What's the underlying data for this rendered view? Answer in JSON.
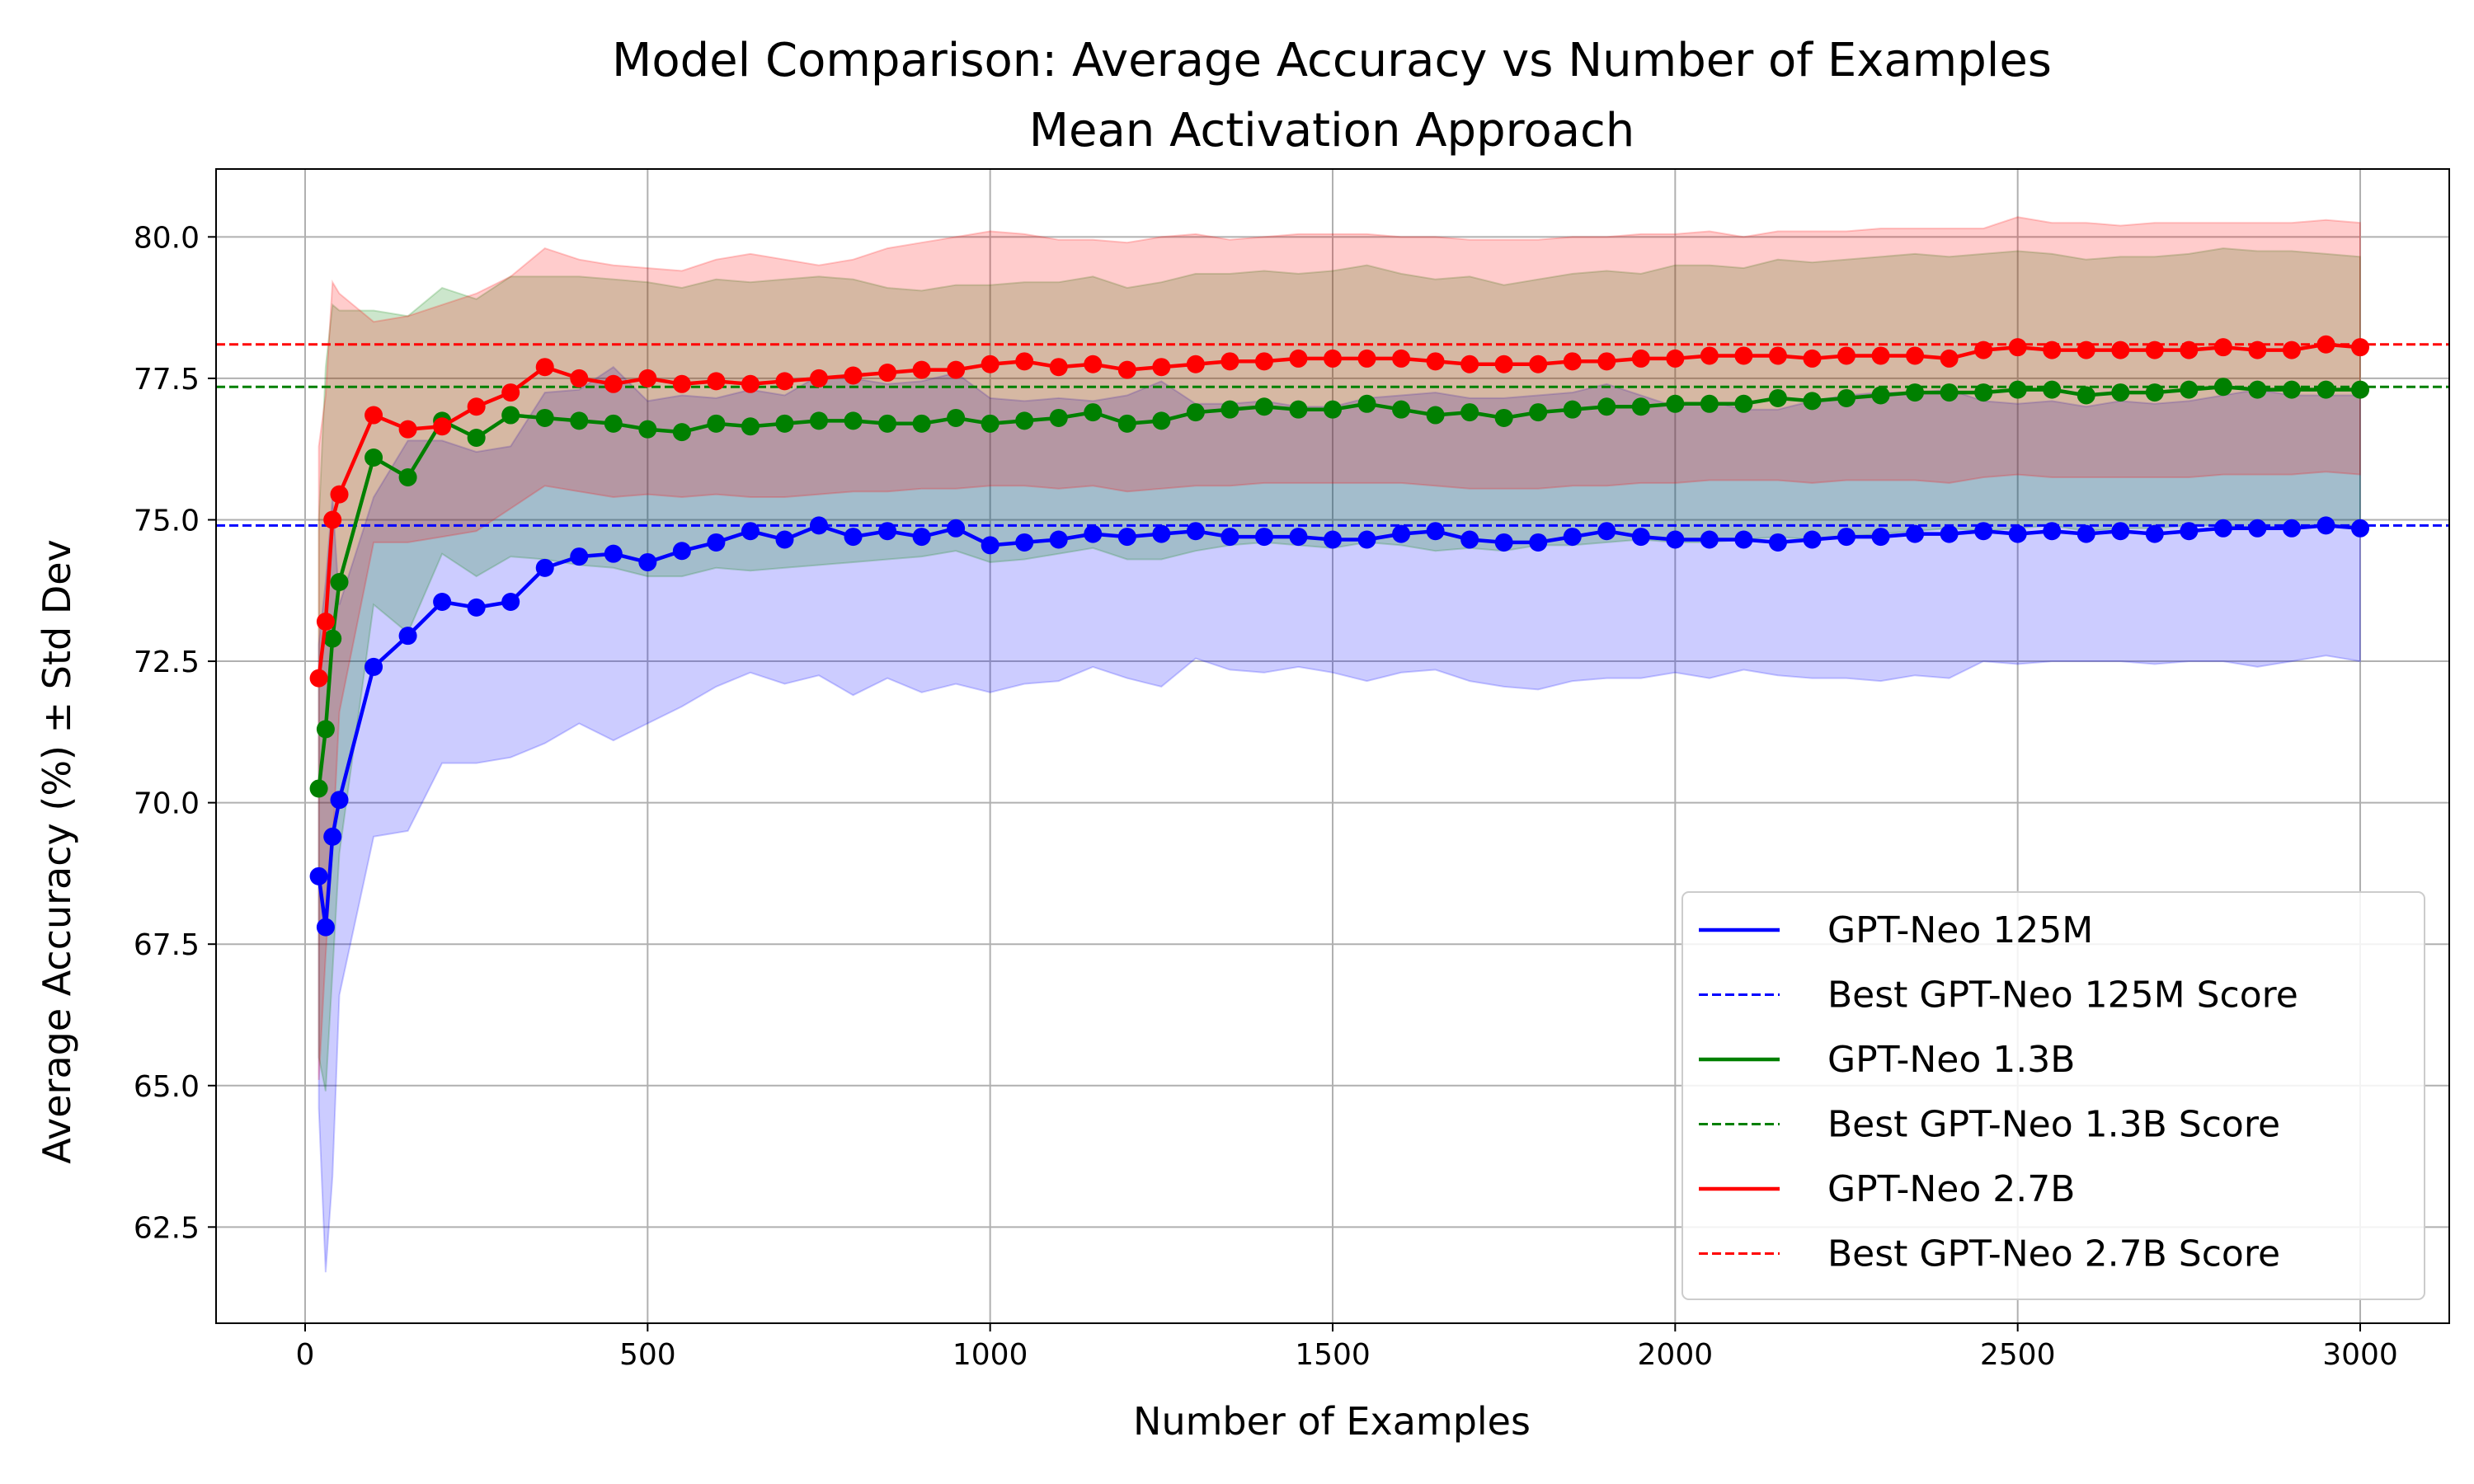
{
  "chart_data": {
    "type": "line",
    "title": "Model Comparison: Average Accuracy vs Number of Examples",
    "subtitle": "Mean Activation Approach",
    "xlabel": "Number of Examples",
    "ylabel": "Average Accuracy (%) ± Std Dev",
    "xlim": [
      -130,
      3130
    ],
    "ylim": [
      60.8,
      81.2
    ],
    "xticks": [
      0,
      500,
      1000,
      1500,
      2000,
      2500,
      3000
    ],
    "xtick_labels": [
      "0",
      "500",
      "1000",
      "1500",
      "2000",
      "2500",
      "3000"
    ],
    "yticks": [
      62.5,
      65.0,
      67.5,
      70.0,
      72.5,
      75.0,
      77.5,
      80.0
    ],
    "ytick_labels": [
      "62.5",
      "65.0",
      "67.5",
      "70.0",
      "72.5",
      "75.0",
      "77.5",
      "80.0"
    ],
    "grid": true,
    "legend_position": "bottom-right",
    "x": [
      20,
      30,
      40,
      50,
      100,
      150,
      200,
      250,
      300,
      350,
      400,
      450,
      500,
      550,
      600,
      650,
      700,
      750,
      800,
      850,
      900,
      950,
      1000,
      1050,
      1100,
      1150,
      1200,
      1250,
      1300,
      1350,
      1400,
      1450,
      1500,
      1550,
      1600,
      1650,
      1700,
      1750,
      1800,
      1850,
      1900,
      1950,
      2000,
      2050,
      2100,
      2150,
      2200,
      2250,
      2300,
      2350,
      2400,
      2450,
      2500,
      2550,
      2600,
      2650,
      2700,
      2750,
      2800,
      2850,
      2900,
      2950,
      3000
    ],
    "series": [
      {
        "name": "GPT-Neo 125M",
        "color": "#0000ff",
        "band_color": "#0000ff",
        "mean": [
          68.7,
          67.8,
          69.4,
          70.05,
          72.4,
          72.95,
          73.55,
          73.45,
          73.55,
          74.15,
          74.35,
          74.4,
          74.25,
          74.45,
          74.6,
          74.8,
          74.65,
          74.9,
          74.7,
          74.8,
          74.7,
          74.85,
          74.55,
          74.6,
          74.65,
          74.75,
          74.7,
          74.75,
          74.8,
          74.7,
          74.7,
          74.7,
          74.65,
          74.65,
          74.75,
          74.8,
          74.65,
          74.6,
          74.6,
          74.7,
          74.8,
          74.7,
          74.65,
          74.65,
          74.65,
          74.6,
          74.65,
          74.7,
          74.7,
          74.75,
          74.75,
          74.8,
          74.75,
          74.8,
          74.75,
          74.8,
          74.75,
          74.8,
          74.85,
          74.85,
          74.85,
          74.9,
          74.85
        ],
        "lower": [
          64.6,
          61.7,
          63.4,
          66.6,
          69.4,
          69.5,
          70.7,
          70.7,
          70.8,
          71.05,
          71.4,
          71.1,
          71.4,
          71.7,
          72.05,
          72.3,
          72.1,
          72.25,
          71.9,
          72.2,
          71.95,
          72.1,
          71.95,
          72.1,
          72.15,
          72.4,
          72.2,
          72.05,
          72.55,
          72.35,
          72.3,
          72.4,
          72.3,
          72.15,
          72.3,
          72.35,
          72.15,
          72.05,
          72.0,
          72.15,
          72.2,
          72.2,
          72.3,
          72.2,
          72.35,
          72.25,
          72.2,
          72.2,
          72.15,
          72.25,
          72.2,
          72.5,
          72.45,
          72.5,
          72.5,
          72.5,
          72.45,
          72.5,
          72.5,
          72.4,
          72.5,
          72.6,
          72.5
        ],
        "upper": [
          72.8,
          73.9,
          75.4,
          73.5,
          75.4,
          76.4,
          76.4,
          76.2,
          76.3,
          77.25,
          77.3,
          77.7,
          77.1,
          77.2,
          77.15,
          77.3,
          77.2,
          77.55,
          77.5,
          77.4,
          77.45,
          77.6,
          77.15,
          77.1,
          77.15,
          77.1,
          77.2,
          77.45,
          77.05,
          77.05,
          77.1,
          77.0,
          77.0,
          77.15,
          77.2,
          77.25,
          77.15,
          77.15,
          77.2,
          77.25,
          77.4,
          77.2,
          77.0,
          77.1,
          76.95,
          76.95,
          77.1,
          77.2,
          77.25,
          77.25,
          77.3,
          77.1,
          77.05,
          77.1,
          77.0,
          77.1,
          77.05,
          77.1,
          77.2,
          77.3,
          77.2,
          77.2,
          77.2
        ],
        "best": 74.9,
        "best_label": "Best GPT-Neo 125M Score"
      },
      {
        "name": "GPT-Neo 1.3B",
        "color": "#008000",
        "band_color": "#008000",
        "mean": [
          70.25,
          71.3,
          72.9,
          73.9,
          76.1,
          75.75,
          76.75,
          76.45,
          76.85,
          76.8,
          76.75,
          76.7,
          76.6,
          76.55,
          76.7,
          76.65,
          76.7,
          76.75,
          76.75,
          76.7,
          76.7,
          76.8,
          76.7,
          76.75,
          76.8,
          76.9,
          76.7,
          76.75,
          76.9,
          76.95,
          77.0,
          76.95,
          76.95,
          77.05,
          76.95,
          76.85,
          76.9,
          76.8,
          76.9,
          76.95,
          77.0,
          77.0,
          77.05,
          77.05,
          77.05,
          77.15,
          77.1,
          77.15,
          77.2,
          77.25,
          77.25,
          77.25,
          77.3,
          77.3,
          77.2,
          77.25,
          77.25,
          77.3,
          77.35,
          77.3,
          77.3,
          77.3,
          77.3
        ],
        "lower": [
          65.5,
          64.9,
          67.0,
          69.1,
          73.5,
          73.0,
          74.4,
          74.0,
          74.35,
          74.3,
          74.2,
          74.15,
          74.0,
          74.0,
          74.15,
          74.1,
          74.15,
          74.2,
          74.25,
          74.3,
          74.35,
          74.45,
          74.25,
          74.3,
          74.4,
          74.5,
          74.3,
          74.3,
          74.45,
          74.55,
          74.6,
          74.55,
          74.5,
          74.6,
          74.55,
          74.45,
          74.5,
          74.45,
          74.55,
          74.55,
          74.6,
          74.65,
          74.6,
          74.6,
          74.65,
          74.7,
          74.65,
          74.7,
          74.75,
          74.8,
          74.85,
          74.8,
          74.85,
          74.9,
          74.8,
          74.85,
          74.85,
          74.9,
          74.9,
          74.85,
          74.85,
          74.9,
          74.9
        ],
        "upper": [
          75.0,
          77.7,
          78.8,
          78.7,
          78.7,
          78.6,
          79.1,
          78.9,
          79.3,
          79.3,
          79.3,
          79.25,
          79.2,
          79.1,
          79.25,
          79.2,
          79.25,
          79.3,
          79.25,
          79.1,
          79.05,
          79.15,
          79.15,
          79.2,
          79.2,
          79.3,
          79.1,
          79.2,
          79.35,
          79.35,
          79.4,
          79.35,
          79.4,
          79.5,
          79.35,
          79.25,
          79.3,
          79.15,
          79.25,
          79.35,
          79.4,
          79.35,
          79.5,
          79.5,
          79.45,
          79.6,
          79.55,
          79.6,
          79.65,
          79.7,
          79.65,
          79.7,
          79.75,
          79.7,
          79.6,
          79.65,
          79.65,
          79.7,
          79.8,
          79.75,
          79.75,
          79.7,
          79.65
        ],
        "best": 77.35,
        "best_label": "Best GPT-Neo 1.3B Score"
      },
      {
        "name": "GPT-Neo 2.7B",
        "color": "#ff0000",
        "band_color": "#ff0000",
        "mean": [
          72.2,
          73.2,
          75.0,
          75.45,
          76.85,
          76.6,
          76.65,
          77.0,
          77.25,
          77.7,
          77.5,
          77.4,
          77.5,
          77.4,
          77.45,
          77.4,
          77.45,
          77.5,
          77.55,
          77.6,
          77.65,
          77.65,
          77.75,
          77.8,
          77.7,
          77.75,
          77.65,
          77.7,
          77.75,
          77.8,
          77.8,
          77.85,
          77.85,
          77.85,
          77.85,
          77.8,
          77.75,
          77.75,
          77.75,
          77.8,
          77.8,
          77.85,
          77.85,
          77.9,
          77.9,
          77.9,
          77.85,
          77.9,
          77.9,
          77.9,
          77.85,
          78.0,
          78.05,
          78.0,
          78.0,
          78.0,
          78.0,
          78.0,
          78.05,
          78.0,
          78.0,
          78.1,
          78.05
        ],
        "lower": [
          65.1,
          67.3,
          69.2,
          71.6,
          74.6,
          74.6,
          74.7,
          74.8,
          75.2,
          75.6,
          75.5,
          75.4,
          75.45,
          75.4,
          75.45,
          75.4,
          75.4,
          75.45,
          75.5,
          75.5,
          75.55,
          75.55,
          75.6,
          75.6,
          75.55,
          75.6,
          75.5,
          75.55,
          75.6,
          75.6,
          75.65,
          75.65,
          75.65,
          75.65,
          75.65,
          75.6,
          75.55,
          75.55,
          75.55,
          75.6,
          75.6,
          75.65,
          75.65,
          75.7,
          75.7,
          75.7,
          75.65,
          75.7,
          75.7,
          75.7,
          75.65,
          75.75,
          75.8,
          75.75,
          75.75,
          75.75,
          75.75,
          75.75,
          75.8,
          75.8,
          75.8,
          75.85,
          75.8
        ],
        "upper": [
          76.3,
          77.2,
          79.2,
          79.0,
          78.5,
          78.6,
          78.8,
          79.0,
          79.3,
          79.8,
          79.6,
          79.5,
          79.45,
          79.4,
          79.6,
          79.7,
          79.6,
          79.5,
          79.6,
          79.8,
          79.9,
          80.0,
          80.1,
          80.05,
          79.95,
          79.95,
          79.9,
          80.0,
          80.05,
          79.95,
          80.0,
          80.05,
          80.05,
          80.05,
          80.0,
          80.0,
          79.95,
          79.95,
          79.95,
          80.0,
          80.0,
          80.05,
          80.05,
          80.1,
          80.0,
          80.1,
          80.1,
          80.1,
          80.15,
          80.15,
          80.15,
          80.15,
          80.35,
          80.25,
          80.25,
          80.2,
          80.25,
          80.25,
          80.25,
          80.25,
          80.25,
          80.3,
          80.25
        ],
        "best": 78.1,
        "best_label": "Best GPT-Neo 2.7B Score"
      }
    ]
  }
}
